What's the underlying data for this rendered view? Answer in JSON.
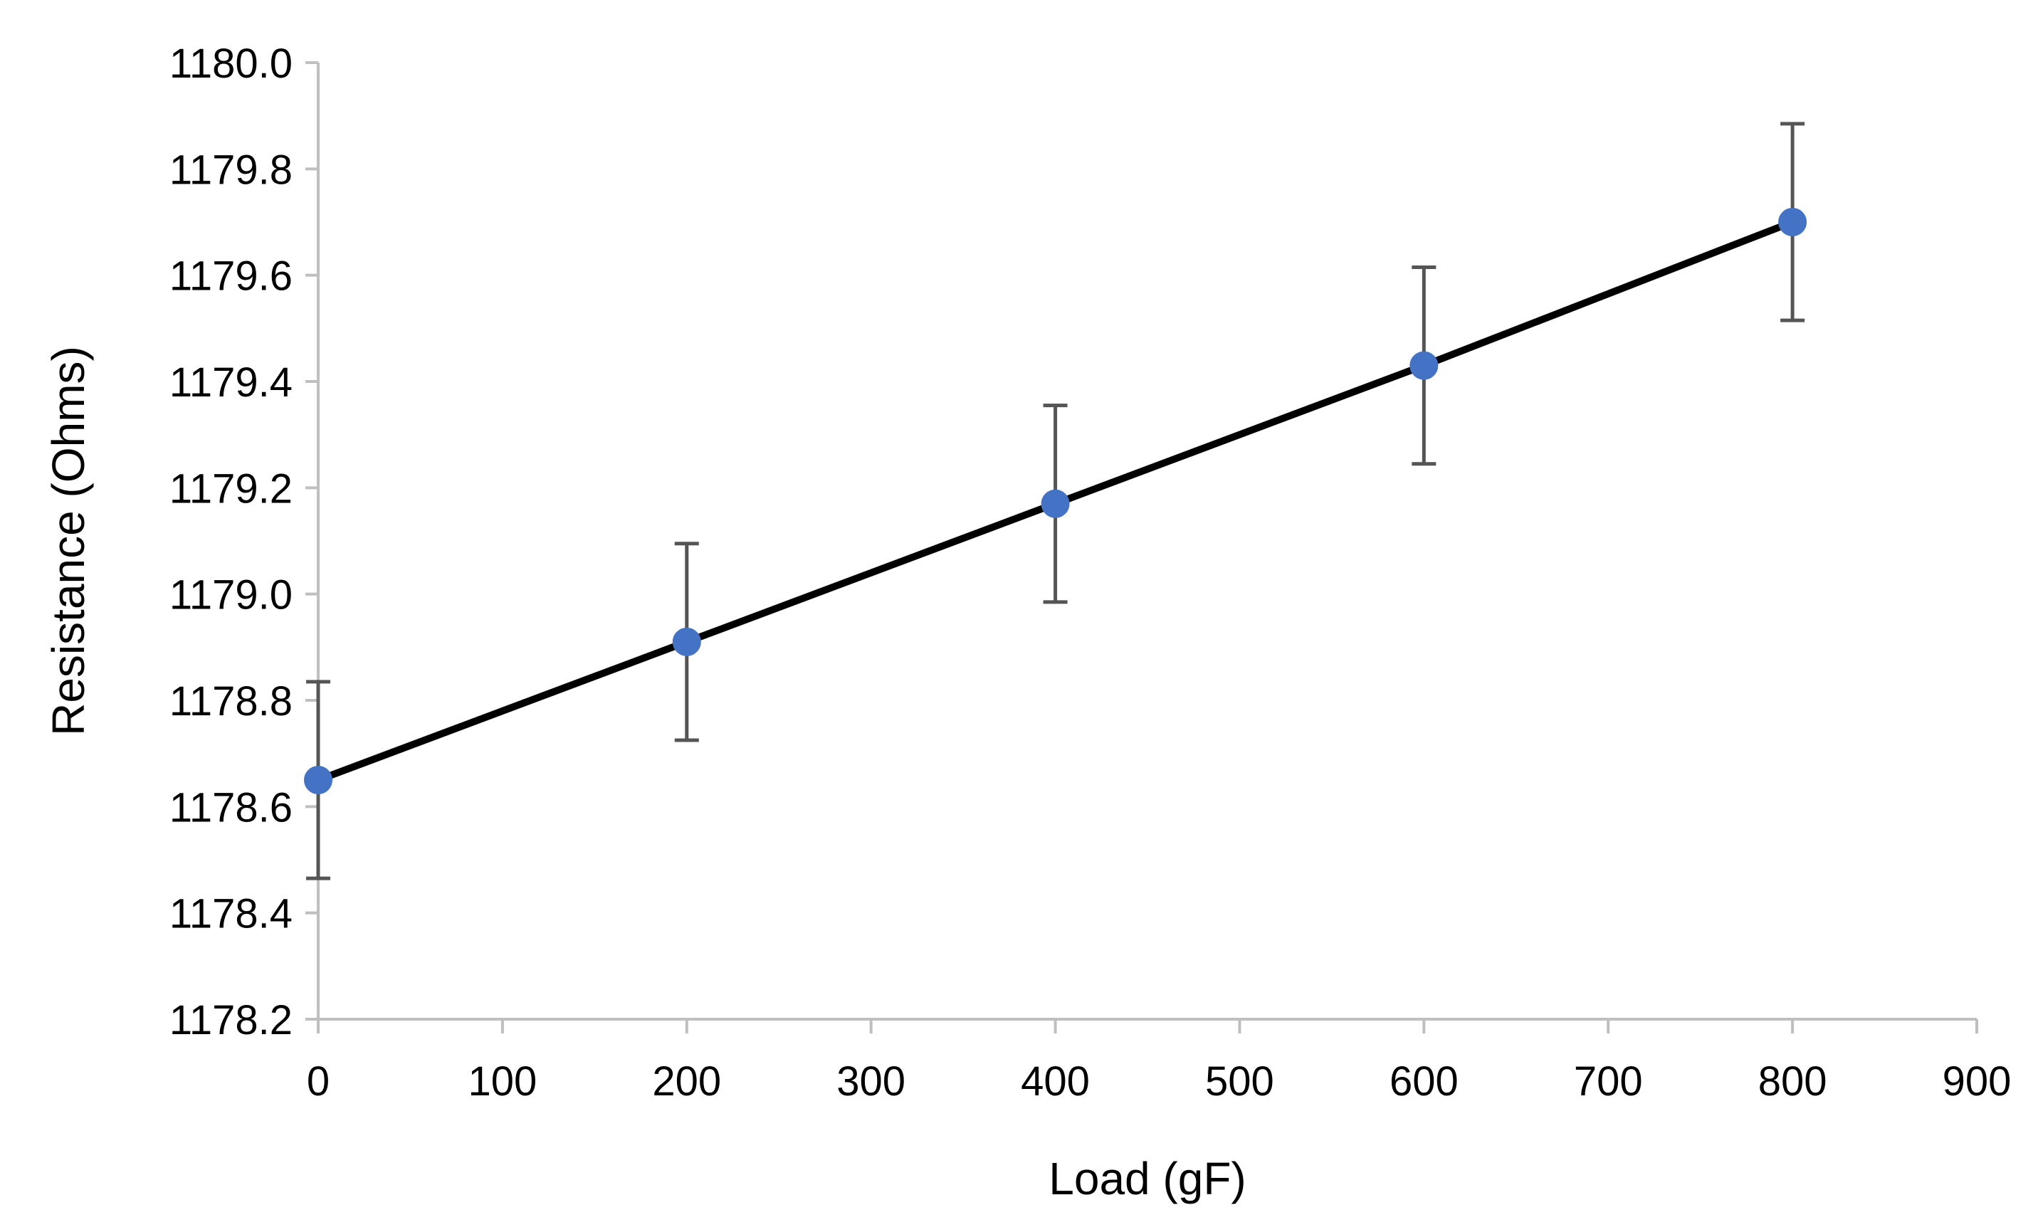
{
  "chart_data": {
    "type": "line",
    "title": "",
    "xlabel": "Load (gF)",
    "ylabel": "Resistance (Ohms)",
    "xlim": [
      0,
      900
    ],
    "ylim": [
      1178.2,
      1180.0
    ],
    "x_ticks": [
      0,
      100,
      200,
      300,
      400,
      500,
      600,
      700,
      800,
      900
    ],
    "y_ticks": [
      1178.2,
      1178.4,
      1178.6,
      1178.8,
      1179.0,
      1179.2,
      1179.4,
      1179.6,
      1179.8,
      1180.0
    ],
    "x_tick_labels": [
      "0",
      "100",
      "200",
      "300",
      "400",
      "500",
      "600",
      "700",
      "800",
      "900"
    ],
    "y_tick_labels": [
      "1178.2",
      "1178.4",
      "1178.6",
      "1178.8",
      "1179.0",
      "1179.2",
      "1179.4",
      "1179.6",
      "1179.8",
      "1180.0"
    ],
    "grid": false,
    "legend": "none",
    "series": [
      {
        "name": "Resistance",
        "marker_color": "#4472c4",
        "line_color": "#000000",
        "x": [
          0,
          200,
          400,
          600,
          800
        ],
        "y": [
          1178.65,
          1178.91,
          1179.17,
          1179.43,
          1179.7
        ],
        "error_low": [
          1178.465,
          1178.725,
          1178.985,
          1179.245,
          1179.515
        ],
        "error_high": [
          1178.835,
          1179.095,
          1179.355,
          1179.615,
          1179.885
        ]
      }
    ]
  },
  "colors": {
    "axis": "#bfbfbf",
    "marker": "#4472c4",
    "line": "#000000",
    "error_bar": "#555555",
    "text": "#000000"
  }
}
